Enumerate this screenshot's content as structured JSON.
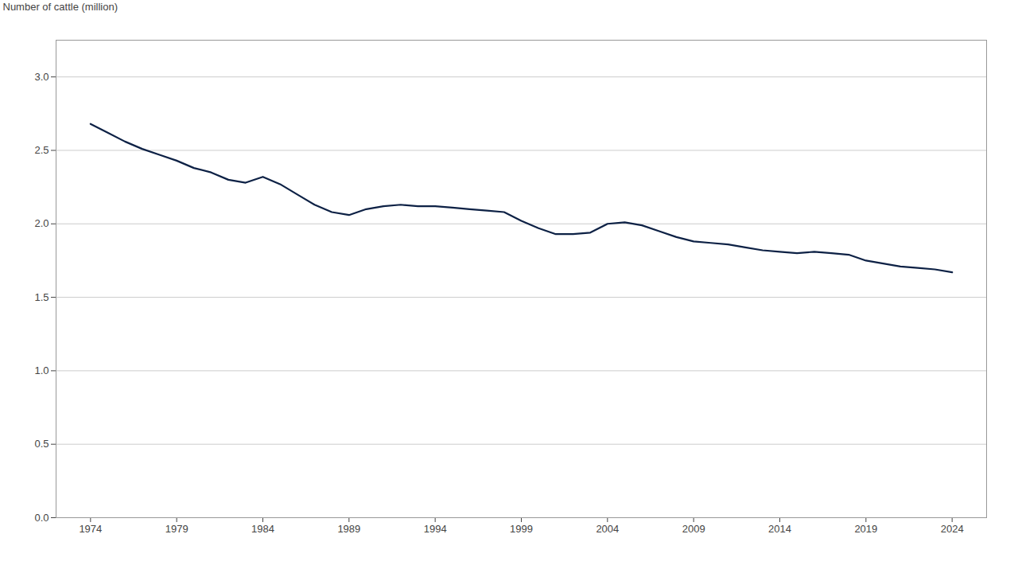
{
  "chart_data": {
    "type": "line",
    "ylabel": "Number of cattle (million)",
    "color": "#0d2145",
    "x": [
      1974,
      1975,
      1976,
      1977,
      1978,
      1979,
      1980,
      1981,
      1982,
      1983,
      1984,
      1985,
      1986,
      1987,
      1988,
      1989,
      1990,
      1991,
      1992,
      1993,
      1994,
      1995,
      1996,
      1997,
      1998,
      1999,
      2000,
      2001,
      2002,
      2003,
      2004,
      2005,
      2006,
      2007,
      2008,
      2009,
      2010,
      2011,
      2012,
      2013,
      2014,
      2015,
      2016,
      2017,
      2018,
      2019,
      2020,
      2021,
      2022,
      2023,
      2024
    ],
    "values": [
      2.68,
      2.62,
      2.56,
      2.51,
      2.47,
      2.43,
      2.38,
      2.35,
      2.3,
      2.28,
      2.32,
      2.27,
      2.2,
      2.13,
      2.08,
      2.06,
      2.1,
      2.12,
      2.13,
      2.12,
      2.12,
      2.11,
      2.1,
      2.09,
      2.08,
      2.02,
      1.97,
      1.93,
      1.93,
      1.94,
      2.0,
      2.01,
      1.99,
      1.95,
      1.91,
      1.88,
      1.87,
      1.86,
      1.84,
      1.82,
      1.81,
      1.8,
      1.81,
      1.8,
      1.79,
      1.75,
      1.73,
      1.71,
      1.7,
      1.69,
      1.67
    ],
    "ylim": [
      0.0,
      3.25
    ],
    "yticks": [
      {
        "value": 0.0,
        "label": "0.0"
      },
      0.5,
      {
        "value": 1.0,
        "label": "1.0"
      },
      1.5,
      {
        "value": 2.0,
        "label": "2.0"
      },
      2.5,
      {
        "value": 3.0,
        "label": "3.0"
      }
    ],
    "xlim": [
      1972,
      2026
    ],
    "xticks": [
      1974,
      1979,
      1984,
      1989,
      1994,
      1999,
      2004,
      2009,
      2014,
      2019,
      2024
    ],
    "grid": true
  }
}
